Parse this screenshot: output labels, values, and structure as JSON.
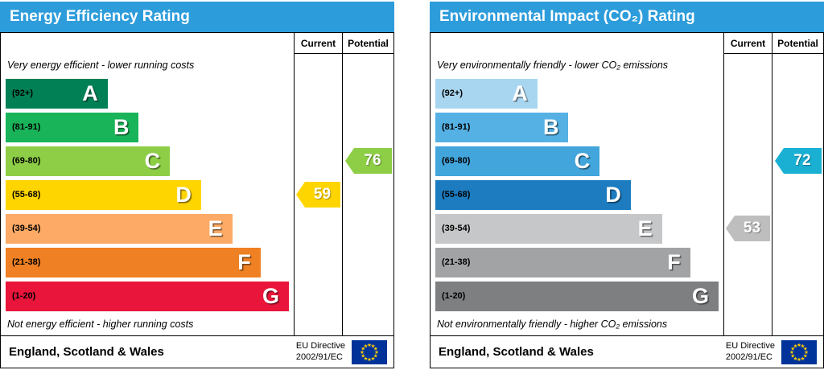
{
  "chart_data": [
    {
      "type": "bar",
      "title": "Energy Efficiency Rating",
      "header_color": "#2d9cdb",
      "col_current": "Current",
      "col_potential": "Potential",
      "top_note": "Very energy efficient - lower running costs",
      "bottom_note": "Not energy efficient - higher running costs",
      "bands": [
        {
          "range": "(92+)",
          "letter": "A",
          "color": "#008054",
          "width_pct": 36
        },
        {
          "range": "(81-91)",
          "letter": "B",
          "color": "#19b459",
          "width_pct": 47
        },
        {
          "range": "(69-80)",
          "letter": "C",
          "color": "#8dce46",
          "width_pct": 58
        },
        {
          "range": "(55-68)",
          "letter": "D",
          "color": "#ffd500",
          "width_pct": 69
        },
        {
          "range": "(39-54)",
          "letter": "E",
          "color": "#fcaa65",
          "width_pct": 80
        },
        {
          "range": "(21-38)",
          "letter": "F",
          "color": "#ef8023",
          "width_pct": 90
        },
        {
          "range": "(1-20)",
          "letter": "G",
          "color": "#e9153b",
          "width_pct": 100
        }
      ],
      "current": {
        "value": 59,
        "band_index": 3,
        "color": "#ffd500"
      },
      "potential": {
        "value": 76,
        "band_index": 2,
        "color": "#8dce46"
      },
      "footer_region": "England, Scotland & Wales",
      "directive_line1": "EU Directive",
      "directive_line2": "2002/91/EC"
    },
    {
      "type": "bar",
      "title": "Environmental Impact (CO₂) Rating",
      "header_color": "#2d9cdb",
      "col_current": "Current",
      "col_potential": "Potential",
      "top_note": "Very environmentally friendly - lower CO₂ emissions",
      "bottom_note": "Not environmentally friendly - higher CO₂ emissions",
      "bands": [
        {
          "range": "(92+)",
          "letter": "A",
          "color": "#a8d6f0",
          "width_pct": 36
        },
        {
          "range": "(81-91)",
          "letter": "B",
          "color": "#55b1e4",
          "width_pct": 47
        },
        {
          "range": "(69-80)",
          "letter": "C",
          "color": "#42a5dc",
          "width_pct": 58
        },
        {
          "range": "(55-68)",
          "letter": "D",
          "color": "#1d7cc0",
          "width_pct": 69
        },
        {
          "range": "(39-54)",
          "letter": "E",
          "color": "#c6c7c8",
          "width_pct": 80
        },
        {
          "range": "(21-38)",
          "letter": "F",
          "color": "#a2a3a5",
          "width_pct": 90
        },
        {
          "range": "(1-20)",
          "letter": "G",
          "color": "#7e7f81",
          "width_pct": 100
        }
      ],
      "current": {
        "value": 53,
        "band_index": 4,
        "color": "#bebebe"
      },
      "potential": {
        "value": 72,
        "band_index": 2,
        "color": "#1ab0d3"
      },
      "footer_region": "England, Scotland & Wales",
      "directive_line1": "EU Directive",
      "directive_line2": "2002/91/EC"
    }
  ],
  "flag_colors": {
    "field": "#003399",
    "stars": "#ffcc00"
  }
}
